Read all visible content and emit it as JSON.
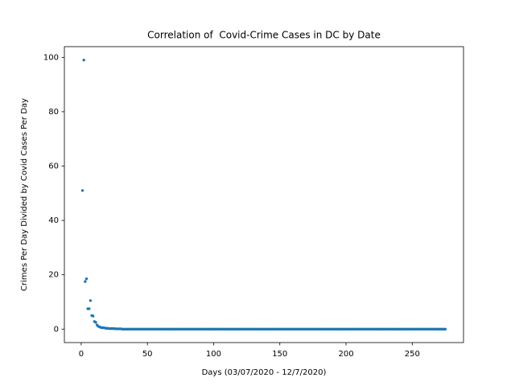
{
  "chart_data": {
    "type": "scatter",
    "title": "Correlation of  Covid-Crime Cases in DC by Date",
    "xlabel": "Days (03/07/2020 - 12/7/2020)",
    "ylabel": "Crimes Per Day Divided by Covid Cases Per Day",
    "color": "#1f77b4",
    "xlim": [
      -12.7,
      288.7
    ],
    "ylim": [
      -4.95,
      103.95
    ],
    "xticks": [
      0,
      50,
      100,
      150,
      200,
      250
    ],
    "yticks": [
      0,
      20,
      40,
      60,
      80,
      100
    ],
    "x": [
      1,
      2,
      3,
      4,
      5,
      6,
      7,
      8,
      9,
      10,
      11,
      12,
      13,
      14,
      15,
      16,
      17,
      18,
      19,
      20,
      21,
      22,
      23,
      24,
      25,
      26,
      27,
      28,
      29,
      30,
      31,
      32,
      33,
      34,
      35,
      36,
      37,
      38,
      39,
      40,
      41,
      42,
      43,
      44,
      45,
      46,
      47,
      48,
      49,
      50,
      51,
      52,
      53,
      54,
      55,
      56,
      57,
      58,
      59,
      60,
      61,
      62,
      63,
      64,
      65,
      66,
      67,
      68,
      69,
      70,
      71,
      72,
      73,
      74,
      75,
      76,
      77,
      78,
      79,
      80,
      81,
      82,
      83,
      84,
      85,
      86,
      87,
      88,
      89,
      90,
      91,
      92,
      93,
      94,
      95,
      96,
      97,
      98,
      99,
      100,
      101,
      102,
      103,
      104,
      105,
      106,
      107,
      108,
      109,
      110,
      111,
      112,
      113,
      114,
      115,
      116,
      117,
      118,
      119,
      120,
      121,
      122,
      123,
      124,
      125,
      126,
      127,
      128,
      129,
      130,
      131,
      132,
      133,
      134,
      135,
      136,
      137,
      138,
      139,
      140,
      141,
      142,
      143,
      144,
      145,
      146,
      147,
      148,
      149,
      150,
      151,
      152,
      153,
      154,
      155,
      156,
      157,
      158,
      159,
      160,
      161,
      162,
      163,
      164,
      165,
      166,
      167,
      168,
      169,
      170,
      171,
      172,
      173,
      174,
      175,
      176,
      177,
      178,
      179,
      180,
      181,
      182,
      183,
      184,
      185,
      186,
      187,
      188,
      189,
      190,
      191,
      192,
      193,
      194,
      195,
      196,
      197,
      198,
      199,
      200,
      201,
      202,
      203,
      204,
      205,
      206,
      207,
      208,
      209,
      210,
      211,
      212,
      213,
      214,
      215,
      216,
      217,
      218,
      219,
      220,
      221,
      222,
      223,
      224,
      225,
      226,
      227,
      228,
      229,
      230,
      231,
      232,
      233,
      234,
      235,
      236,
      237,
      238,
      239,
      240,
      241,
      242,
      243,
      244,
      245,
      246,
      247,
      248,
      249,
      250,
      251,
      252,
      253,
      254,
      255,
      256,
      257,
      258,
      259,
      260,
      261,
      262,
      263,
      264,
      265,
      266,
      267,
      268,
      269,
      270,
      271,
      272,
      273,
      274,
      275
    ],
    "values": [
      51,
      99,
      17.5,
      18.5,
      7.5,
      7.5,
      10.5,
      5,
      4.8,
      2.8,
      2.5,
      1.5,
      1,
      0.8,
      0.6,
      0.5,
      0.5,
      0.4,
      0.3,
      0.3,
      0.2,
      0.2,
      0.2,
      0.2,
      0.2,
      0.1,
      0.1,
      0.1,
      0.1,
      0.1,
      0,
      0,
      0,
      0,
      0,
      0,
      0,
      0,
      0,
      0,
      0,
      0,
      0,
      0,
      0,
      0,
      0,
      0,
      0,
      0,
      0,
      0,
      0,
      0,
      0,
      0,
      0,
      0,
      0,
      0,
      0,
      0,
      0,
      0,
      0,
      0,
      0,
      0,
      0,
      0,
      0,
      0,
      0,
      0,
      0,
      0,
      0,
      0,
      0,
      0,
      0,
      0,
      0,
      0,
      0,
      0,
      0,
      0,
      0,
      0,
      0,
      0,
      0,
      0,
      0,
      0,
      0,
      0,
      0,
      0,
      0,
      0,
      0,
      0,
      0,
      0,
      0,
      0,
      0,
      0,
      0,
      0,
      0,
      0,
      0,
      0,
      0,
      0,
      0,
      0,
      0,
      0,
      0,
      0,
      0,
      0,
      0,
      0,
      0,
      0,
      0,
      0,
      0,
      0,
      0,
      0,
      0,
      0,
      0,
      0,
      0,
      0,
      0,
      0,
      0,
      0,
      0,
      0,
      0,
      0,
      0,
      0,
      0,
      0,
      0,
      0,
      0,
      0,
      0,
      0,
      0,
      0,
      0,
      0,
      0,
      0,
      0,
      0,
      0,
      0,
      0,
      0,
      0,
      0,
      0,
      0,
      0,
      0,
      0,
      0,
      0,
      0,
      0,
      0,
      0,
      0,
      0,
      0,
      0,
      0,
      0,
      0,
      0,
      0,
      0,
      0,
      0,
      0,
      0,
      0,
      0,
      0,
      0,
      0,
      0,
      0,
      0,
      0,
      0,
      0,
      0,
      0,
      0,
      0,
      0,
      0,
      0,
      0,
      0,
      0,
      0,
      0,
      0,
      0,
      0,
      0,
      0,
      0,
      0,
      0,
      0,
      0,
      0,
      0,
      0,
      0,
      0,
      0,
      0,
      0,
      0,
      0,
      0,
      0,
      0,
      0,
      0,
      0,
      0,
      0,
      0,
      0,
      0,
      0,
      0,
      0,
      0,
      0,
      0,
      0,
      0,
      0,
      0,
      0,
      0,
      0,
      0,
      0,
      0,
      0,
      0,
      0,
      0,
      0,
      0
    ]
  }
}
